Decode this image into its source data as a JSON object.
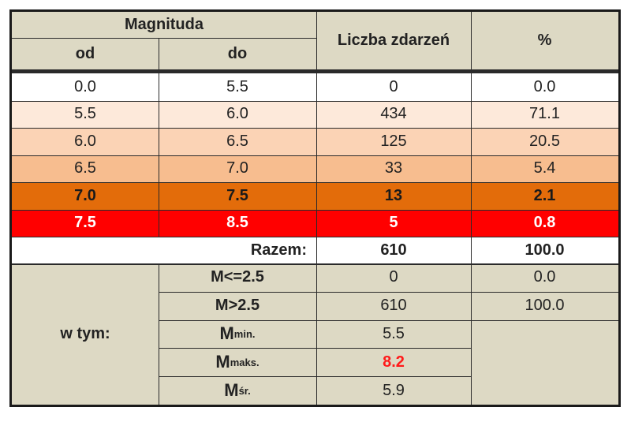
{
  "header": {
    "magnitude_group": "Magnituda",
    "from": "od",
    "to": "do",
    "event_count": "Liczba zdarzeń",
    "percent": "%"
  },
  "rows": [
    {
      "from": "0.0",
      "to": "5.5",
      "count": "0",
      "percent": "0.0",
      "bg": "#ffffff"
    },
    {
      "from": "5.5",
      "to": "6.0",
      "count": "434",
      "percent": "71.1",
      "bg": "#fde9da"
    },
    {
      "from": "6.0",
      "to": "6.5",
      "count": "125",
      "percent": "20.5",
      "bg": "#fbd3b5"
    },
    {
      "from": "6.5",
      "to": "7.0",
      "count": "33",
      "percent": "5.4",
      "bg": "#f7bd8f"
    },
    {
      "from": "7.0",
      "to": "7.5",
      "count": "13",
      "percent": "2.1",
      "bg": "#e36c0a"
    },
    {
      "from": "7.5",
      "to": "8.5",
      "count": "5",
      "percent": "0.8",
      "bg": "#ff0000"
    }
  ],
  "total": {
    "label": "Razem:",
    "count": "610",
    "percent": "100.0"
  },
  "summary": {
    "label": "w tym:",
    "items": [
      {
        "label": "M<=2.5",
        "value": "0",
        "percent": "0.0"
      },
      {
        "label": "M>2.5",
        "value": "610",
        "percent": "100.0"
      },
      {
        "label": "M",
        "sub": "min.",
        "value": "5.5"
      },
      {
        "label": "M",
        "sub": "maks.",
        "value": "8.2",
        "value_color": "#ff1a1a"
      },
      {
        "label": "M",
        "sub": "śr.",
        "value": "5.9"
      }
    ]
  },
  "colors": {
    "header_bg": "#ddd9c4",
    "summary_bg": "#ddd9c4",
    "border": "#2a2a2a"
  }
}
